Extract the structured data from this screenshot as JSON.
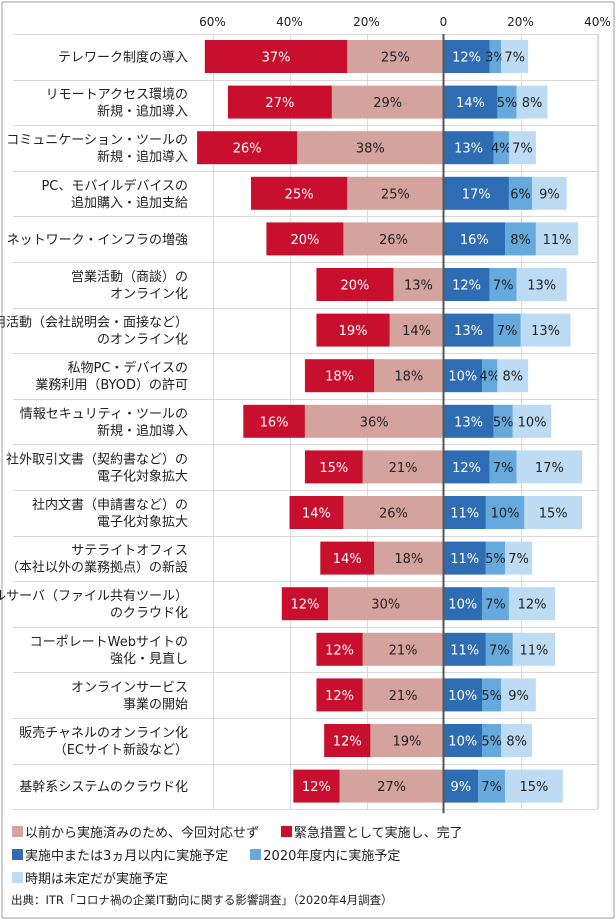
{
  "chart_data": {
    "type": "bar",
    "subtype": "diverging-stacked-horizontal",
    "title": "",
    "xlabel": "",
    "ylabel": "",
    "x_ticks": [
      {
        "value": -60,
        "label": "60%"
      },
      {
        "value": -40,
        "label": "40%"
      },
      {
        "value": -20,
        "label": "20%"
      },
      {
        "value": 0,
        "label": "0"
      },
      {
        "value": 20,
        "label": "20%"
      },
      {
        "value": 40,
        "label": "40%"
      }
    ],
    "xlim": [
      -60,
      40
    ],
    "grid": true,
    "legend_position": "bottom",
    "series": [
      {
        "name": "以前から実施済みのため、今回対応せず",
        "side": "left",
        "color": "#d4a39e",
        "label_color": "#222222",
        "values": [
          25,
          29,
          38,
          25,
          26,
          13,
          14,
          18,
          36,
          21,
          26,
          18,
          30,
          21,
          21,
          19,
          27
        ]
      },
      {
        "name": "緊急措置として実施し、完了",
        "side": "left",
        "color": "#c8102e",
        "label_color": "#ffffff",
        "values": [
          37,
          27,
          26,
          25,
          20,
          20,
          19,
          18,
          16,
          15,
          14,
          14,
          12,
          12,
          12,
          12,
          12
        ]
      },
      {
        "name": "実施中または3ヵ月以内に実施予定",
        "side": "right",
        "color": "#2e6db4",
        "label_color": "#ffffff",
        "values": [
          12,
          14,
          13,
          17,
          16,
          12,
          13,
          10,
          13,
          12,
          11,
          11,
          10,
          11,
          10,
          10,
          9
        ]
      },
      {
        "name": "2020年度内に実施予定",
        "side": "right",
        "color": "#66a9dd",
        "label_color": "#222222",
        "values": [
          3,
          5,
          4,
          6,
          8,
          7,
          7,
          4,
          5,
          7,
          10,
          5,
          7,
          7,
          5,
          5,
          7
        ]
      },
      {
        "name": "時期は未定だが実施予定",
        "side": "right",
        "color": "#bddcf4",
        "label_color": "#222222",
        "values": [
          7,
          8,
          7,
          9,
          11,
          13,
          13,
          8,
          10,
          17,
          15,
          7,
          12,
          11,
          9,
          8,
          15
        ]
      }
    ],
    "categories": [
      [
        "テレワーク制度の導入"
      ],
      [
        "リモートアクセス環境の",
        "新規・追加導入"
      ],
      [
        "コミュニケーション・ツールの",
        "新規・追加導入"
      ],
      [
        "PC、モバイルデバイスの",
        "追加購入・追加支給"
      ],
      [
        "ネットワーク・インフラの増強"
      ],
      [
        "営業活動（商談）の",
        "オンライン化"
      ],
      [
        "採用活動（会社説明会・面接など）",
        "のオンライン化"
      ],
      [
        "私物PC・デバイスの",
        "業務利用（BYOD）の許可"
      ],
      [
        "情報セキュリティ・ツールの",
        "新規・追加導入"
      ],
      [
        "社外取引文書（契約書など）の",
        "電子化対象拡大"
      ],
      [
        "社内文書（申請書など）の",
        "電子化対象拡大"
      ],
      [
        "サテライトオフィス",
        "（本社以外の業務拠点）の新設"
      ],
      [
        "ファイルサーバ（ファイル共有ツール）",
        "のクラウド化"
      ],
      [
        "コーポレートWebサイトの",
        "強化・見直し"
      ],
      [
        "オンラインサービス",
        "事業の開始"
      ],
      [
        "販売チャネルのオンライン化",
        "（ECサイト新設など）"
      ],
      [
        "基幹系システムのクラウド化"
      ]
    ],
    "value_suffix": "%"
  },
  "legend": {
    "rows": [
      [
        0,
        1
      ],
      [
        2,
        3
      ],
      [
        4
      ]
    ]
  },
  "source": "出典：ITR「コロナ禍の企業IT動向に関する影響調査」（2020年4月調査）"
}
